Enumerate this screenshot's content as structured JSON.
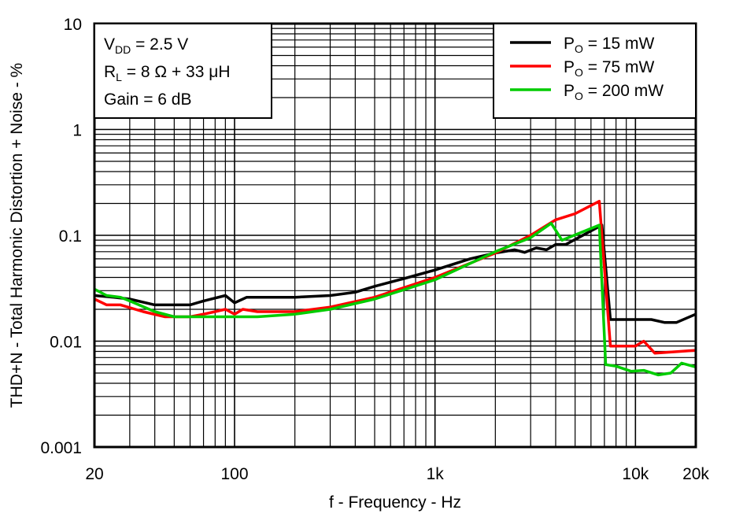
{
  "chart_data": {
    "type": "line",
    "title": "",
    "xlabel": "f - Frequency - Hz",
    "ylabel": "THD+N - Total Harmonic Distortion + Noise - %",
    "xscale": "log",
    "yscale": "log",
    "xlim": [
      20,
      20000
    ],
    "ylim": [
      0.001,
      10
    ],
    "grid": true,
    "legend_position": "top-right",
    "xticks": [
      {
        "v": 20,
        "label": "20"
      },
      {
        "v": 100,
        "label": "100"
      },
      {
        "v": 1000,
        "label": "1k"
      },
      {
        "v": 10000,
        "label": "10k"
      },
      {
        "v": 20000,
        "label": "20k"
      }
    ],
    "yticks": [
      {
        "v": 0.001,
        "label": "0.001"
      },
      {
        "v": 0.01,
        "label": "0.01"
      },
      {
        "v": 0.1,
        "label": "0.1"
      },
      {
        "v": 1,
        "label": "1"
      },
      {
        "v": 10,
        "label": "10"
      }
    ],
    "annotation": {
      "line1": {
        "main": "V",
        "sub": "DD",
        "rest": " = 2.5 V"
      },
      "line2": {
        "main": "R",
        "sub": "L",
        "rest": " = 8 Ω + 33 μH"
      },
      "line3": "Gain = 6 dB"
    },
    "series": [
      {
        "name": "PO = 15 mW",
        "label_main": "P",
        "label_sub": "O",
        "label_rest": " = 15 mW",
        "color": "#000000",
        "x": [
          20,
          25,
          30,
          40,
          50,
          60,
          70,
          90,
          100,
          115,
          150,
          200,
          300,
          400,
          500,
          700,
          1000,
          1500,
          2000,
          2500,
          2800,
          3200,
          3600,
          4000,
          4500,
          6800,
          7500,
          10000,
          12000,
          14000,
          16000,
          20000
        ],
        "y": [
          0.027,
          0.026,
          0.025,
          0.022,
          0.022,
          0.022,
          0.024,
          0.027,
          0.023,
          0.026,
          0.026,
          0.026,
          0.027,
          0.029,
          0.033,
          0.039,
          0.047,
          0.06,
          0.068,
          0.073,
          0.069,
          0.076,
          0.073,
          0.082,
          0.082,
          0.125,
          0.016,
          0.016,
          0.016,
          0.015,
          0.015,
          0.018
        ]
      },
      {
        "name": "PO = 75 mW",
        "label_main": "P",
        "label_sub": "O",
        "label_rest": " = 75 mW",
        "color": "#ff0000",
        "x": [
          20,
          23,
          27,
          35,
          45,
          60,
          70,
          80,
          90,
          100,
          110,
          130,
          200,
          300,
          500,
          1000,
          2000,
          3000,
          4000,
          5000,
          6600,
          7500,
          9000,
          10000,
          11000,
          12500,
          20000
        ],
        "y": [
          0.025,
          0.022,
          0.022,
          0.019,
          0.017,
          0.017,
          0.018,
          0.019,
          0.02,
          0.018,
          0.02,
          0.019,
          0.019,
          0.021,
          0.026,
          0.04,
          0.068,
          0.1,
          0.14,
          0.16,
          0.21,
          0.009,
          0.009,
          0.009,
          0.01,
          0.0077,
          0.0082
        ]
      },
      {
        "name": "PO = 200 mW",
        "label_main": "P",
        "label_sub": "O",
        "label_rest": " = 200 mW",
        "color": "#00cc00",
        "x": [
          20,
          23,
          27,
          30,
          40,
          50,
          70,
          100,
          130,
          200,
          300,
          500,
          1000,
          2000,
          3000,
          3800,
          4300,
          6600,
          7100,
          8000,
          9500,
          11000,
          13000,
          15000,
          17000,
          20000
        ],
        "y": [
          0.031,
          0.027,
          0.026,
          0.024,
          0.019,
          0.017,
          0.017,
          0.017,
          0.017,
          0.018,
          0.02,
          0.025,
          0.038,
          0.07,
          0.095,
          0.13,
          0.09,
          0.125,
          0.006,
          0.0058,
          0.0052,
          0.0053,
          0.0048,
          0.005,
          0.0062,
          0.0057
        ]
      }
    ]
  }
}
